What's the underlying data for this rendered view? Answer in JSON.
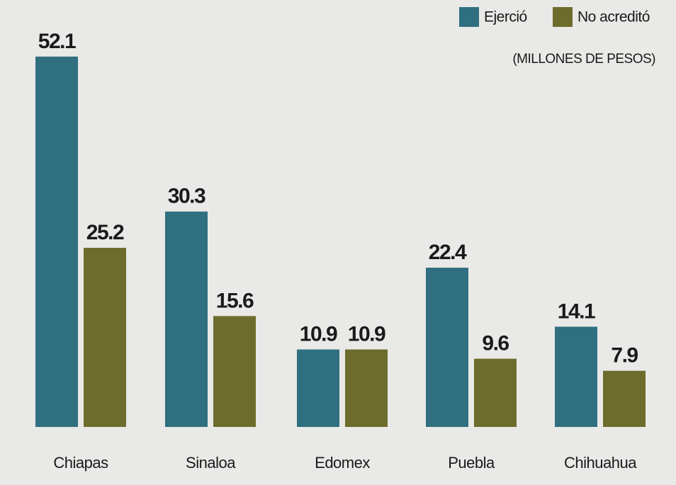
{
  "chart_data": {
    "type": "bar",
    "subtitle": "(MILLONES DE PESOS)",
    "categories": [
      "Chiapas",
      "Sinaloa",
      "Edomex",
      "Puebla",
      "Chihuahua"
    ],
    "series": [
      {
        "name": "Ejerció",
        "color": "#2f6f80",
        "values": [
          52.1,
          30.3,
          10.9,
          22.4,
          14.1
        ]
      },
      {
        "name": "No acreditó",
        "color": "#6e6c2c",
        "values": [
          25.2,
          15.6,
          10.9,
          9.6,
          7.9
        ]
      }
    ],
    "ylim": [
      0,
      55
    ],
    "grid": false,
    "legend": "top-right"
  }
}
